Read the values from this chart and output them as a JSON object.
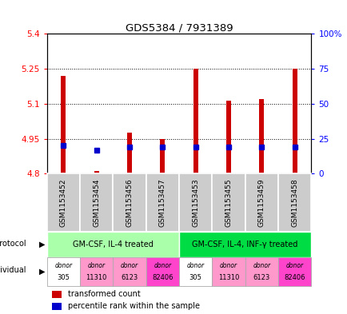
{
  "title": "GDS5384 / 7931389",
  "samples": [
    "GSM1153452",
    "GSM1153454",
    "GSM1153456",
    "GSM1153457",
    "GSM1153453",
    "GSM1153455",
    "GSM1153459",
    "GSM1153458"
  ],
  "transformed_counts": [
    5.22,
    4.81,
    4.975,
    4.95,
    5.25,
    5.115,
    5.12,
    5.25
  ],
  "percentile_ranks_pct": [
    20,
    17,
    19,
    19,
    19,
    19,
    19,
    19
  ],
  "ylim_left": [
    4.8,
    5.4
  ],
  "ylim_right": [
    0,
    100
  ],
  "yticks_left": [
    4.8,
    4.95,
    5.1,
    5.25,
    5.4
  ],
  "yticks_right": [
    0,
    25,
    50,
    75,
    100
  ],
  "ytick_labels_left": [
    "4.8",
    "4.95",
    "5.1",
    "5.25",
    "5.4"
  ],
  "ytick_labels_right": [
    "0",
    "25",
    "50",
    "75",
    "100%"
  ],
  "bar_color": "#cc0000",
  "dot_color": "#0000cc",
  "base_value": 4.8,
  "protocol_groups": [
    {
      "label": "GM-CSF, IL-4 treated",
      "start": 0,
      "end": 4,
      "color": "#aaffaa"
    },
    {
      "label": "GM-CSF, IL-4, INF-γ treated",
      "start": 4,
      "end": 8,
      "color": "#00dd44"
    }
  ],
  "individuals": [
    {
      "label_top": "donor",
      "label_bot": "305",
      "color": "#ffffff"
    },
    {
      "label_top": "donor",
      "label_bot": "11310",
      "color": "#ff99cc"
    },
    {
      "label_top": "donor",
      "label_bot": "6123",
      "color": "#ff99cc"
    },
    {
      "label_top": "donor",
      "label_bot": "82406",
      "color": "#ff44cc"
    },
    {
      "label_top": "donor",
      "label_bot": "305",
      "color": "#ffffff"
    },
    {
      "label_top": "donor",
      "label_bot": "11310",
      "color": "#ff99cc"
    },
    {
      "label_top": "donor",
      "label_bot": "6123",
      "color": "#ff99cc"
    },
    {
      "label_top": "donor",
      "label_bot": "82406",
      "color": "#ff44cc"
    }
  ],
  "bar_width": 0.15,
  "dot_size": 5
}
